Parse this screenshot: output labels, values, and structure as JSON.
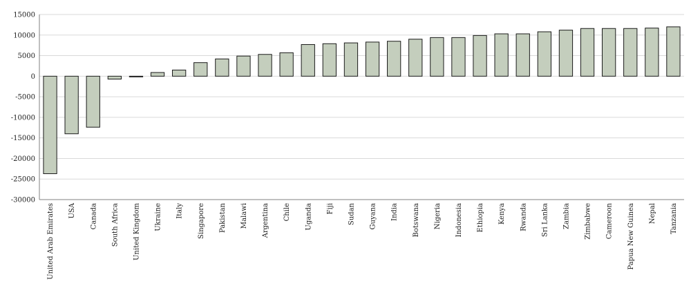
{
  "chart_data": {
    "type": "bar",
    "title": "",
    "xlabel": "",
    "ylabel": "",
    "ylim": [
      -30000,
      15000
    ],
    "yticks": [
      15000,
      10000,
      5000,
      0,
      -5000,
      -10000,
      -15000,
      -20000,
      -25000,
      -30000
    ],
    "ytick_labels": [
      "15000",
      "10000",
      "5000",
      "0",
      "-5000",
      "-10000",
      "-15000",
      "-20000",
      "-25000",
      "-30000"
    ],
    "grid": true,
    "bar_color": "#c4cebd",
    "categories": [
      "United Arab Emirates",
      "USA",
      "Canada",
      "South Africa",
      "United Kingdom",
      "Ukraine",
      "Italy",
      "Singapore",
      "Pakistan",
      "Malawi",
      "Argentina",
      "Chile",
      "Uganda",
      "Fiji",
      "Sudan",
      "Guyana",
      "India",
      "Botswana",
      "Nigeria",
      "Indonesia",
      "Ethiopia",
      "Kenya",
      "Rwanda",
      "Sri Lanka",
      "Zambia",
      "Zimbabwe",
      "Cameroon",
      "Papua New Guinea",
      "Nepal",
      "Tanzania"
    ],
    "values": [
      -23700,
      -14000,
      -12400,
      -700,
      -100,
      900,
      1500,
      3300,
      4200,
      4900,
      5300,
      5700,
      7700,
      7900,
      8100,
      8300,
      8500,
      9000,
      9400,
      9400,
      9900,
      10300,
      10300,
      10800,
      11200,
      11600,
      11600,
      11600,
      11700,
      12000
    ]
  }
}
